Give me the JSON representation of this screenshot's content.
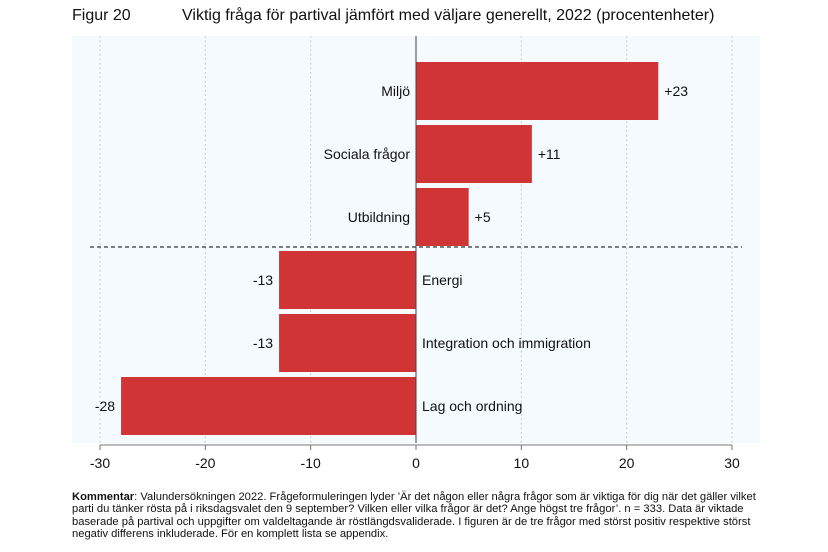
{
  "figure": {
    "number": "Figur 20",
    "title": "Viktig fråga för partival jämfört med väljare generellt, 2022 (procentenheter)"
  },
  "colors": {
    "bar": "#d03434",
    "plot_background": "#f4fafd",
    "grid": "#b8c6cf",
    "divider": "#333333"
  },
  "chart_data": {
    "type": "bar",
    "orientation": "horizontal",
    "categories": [
      "Miljö",
      "Sociala frågor",
      "Utbildning",
      "Energi",
      "Integration och immigration",
      "Lag och ordning"
    ],
    "values": [
      23,
      11,
      5,
      -13,
      -13,
      -28
    ],
    "value_labels": [
      "+23",
      "+11",
      "+5",
      "-13",
      "-13",
      "-28"
    ],
    "xlim": [
      -30,
      30
    ],
    "x_ticks": [
      -30,
      -20,
      -10,
      0,
      10,
      20,
      30
    ],
    "x_tick_labels": [
      "-30",
      "-20",
      "-10",
      "0",
      "10",
      "20",
      "30"
    ],
    "grid": "vertical dotted",
    "divider": "dashed line between positive and negative groups"
  },
  "comment": {
    "label": "Kommentar",
    "text": ": Valundersökningen 2022. Frågeformuleringen lyder ’Är det någon eller några frågor som är viktiga för dig när det gäller vilket parti du tänker rösta på i riksdagsvalet den 9 september? Vilken eller vilka frågor är det? Ange högst tre frågor’. n = 333. Data är viktade baserade på partival och uppgifter om valdeltagande är röstlängdsvaliderade. I figuren är de tre frågor med störst positiv respektive störst negativ differens inkluderade. För en komplett lista se appendix."
  }
}
